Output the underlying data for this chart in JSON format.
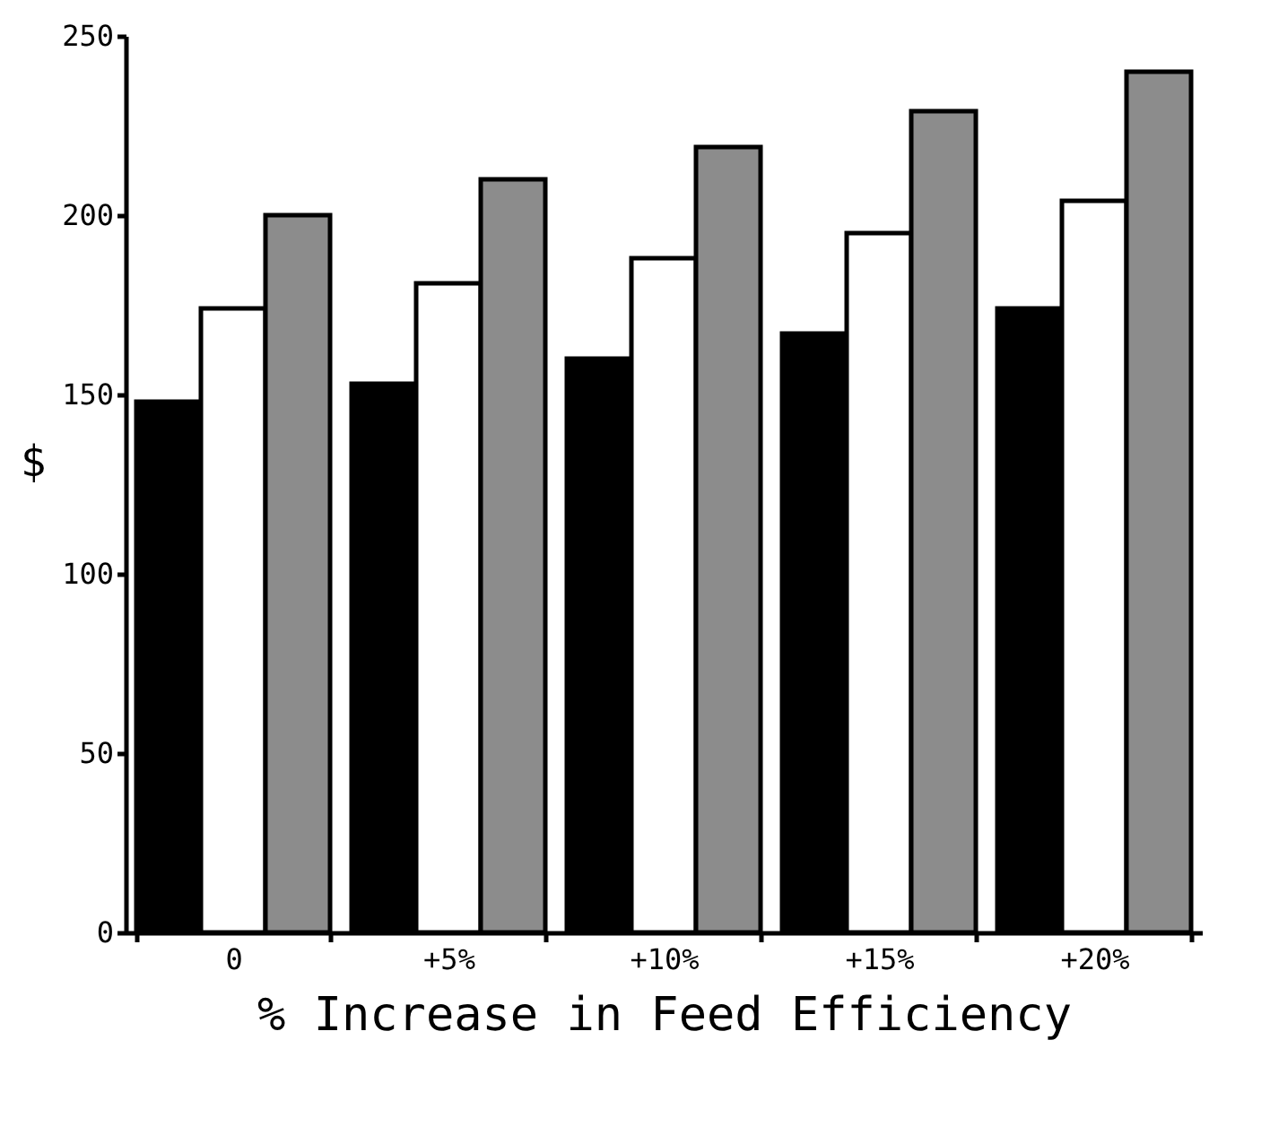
{
  "chart_data": {
    "type": "bar",
    "xlabel": "% Increase in Feed Efficiency",
    "ylabel": "$",
    "categories": [
      "0",
      "+5%",
      "+10%",
      "+15%",
      "+20%"
    ],
    "series": [
      {
        "color": "#000000",
        "values": [
          148,
          153,
          160,
          167,
          174
        ]
      },
      {
        "color": "#ffffff",
        "values": [
          174,
          181,
          188,
          195,
          204
        ]
      },
      {
        "color": "#8c8c8c",
        "values": [
          200,
          210,
          219,
          229,
          240
        ]
      }
    ],
    "ylim": [
      0,
      250
    ],
    "yticks": [
      0,
      50,
      100,
      150,
      200,
      250
    ],
    "grid": false,
    "legend": false
  }
}
